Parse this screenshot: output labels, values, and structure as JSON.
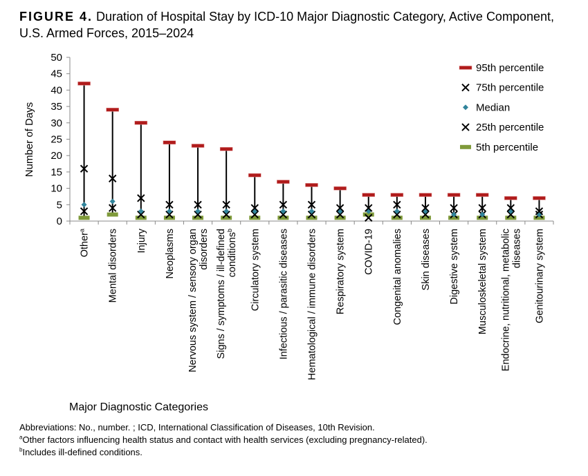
{
  "title": {
    "figure": "FIGURE 4.",
    "text": "Duration of Hospital Stay by ICD-10 Major Diagnostic Category, Active Component, U.S. Armed Forces, 2015–2024"
  },
  "chart_data": {
    "type": "scatter",
    "ylabel": "Number of Days",
    "xlabel": "Major Diagnostic Categories",
    "ylim": [
      0,
      50
    ],
    "yticks": [
      "0",
      "5",
      "10",
      "15",
      "20",
      "25",
      "30",
      "35",
      "40",
      "45",
      "50"
    ],
    "legend_position": "top-right",
    "categories": [
      [
        "Other",
        "a"
      ],
      [
        "Mental disorders"
      ],
      [
        "Injury"
      ],
      [
        "Neoplasms"
      ],
      [
        "Nervous system / sensory organ",
        "disorders"
      ],
      [
        "Signs / symptoms / ill-defined",
        "conditions",
        "b"
      ],
      [
        "Circulatory system"
      ],
      [
        "Infectious / parasitic diseases"
      ],
      [
        "Hematological / immune disorders"
      ],
      [
        "Respiratory system"
      ],
      [
        "COVID-19"
      ],
      [
        "Congenital anomalies"
      ],
      [
        "Skin diseases"
      ],
      [
        "Digestive system"
      ],
      [
        "Musculoskeletal system"
      ],
      [
        "Endocrine, nutritional, metabolic",
        "diseases"
      ],
      [
        "Genitourinary system"
      ]
    ],
    "series": [
      {
        "name": "95th percentile",
        "color": "#b01c1c",
        "values": [
          42,
          34,
          30,
          24,
          23,
          22,
          14,
          12,
          11,
          10,
          8,
          8,
          8,
          8,
          8,
          7,
          7
        ]
      },
      {
        "name": "75th percentile",
        "color": "#000000",
        "values": [
          16,
          13,
          7,
          5,
          5,
          5,
          4,
          5,
          5,
          4,
          4,
          5,
          4,
          4,
          4,
          4,
          3
        ]
      },
      {
        "name": "Median",
        "color": "#31849b",
        "values": [
          5,
          6,
          3,
          3,
          3,
          3,
          3,
          3,
          3,
          3,
          3,
          3,
          3,
          2,
          2,
          3,
          2
        ]
      },
      {
        "name": "25th percentile",
        "color": "#000000",
        "values": [
          3,
          4,
          2,
          2,
          2,
          2,
          2,
          2,
          2,
          2,
          1,
          2,
          2,
          2,
          2,
          2,
          2
        ]
      },
      {
        "name": "5th percentile",
        "color": "#7f9a3a",
        "values": [
          1,
          2,
          1,
          1,
          1,
          1,
          1,
          1,
          1,
          1,
          2,
          1,
          1,
          1,
          1,
          1,
          1
        ]
      }
    ]
  },
  "notes": {
    "abbrev": "Abbreviations: No., number. ; ICD, International Classification of Diseases, 10th Revision.",
    "a_mark": "a",
    "a_text": "Other factors influencing health status and contact with health services (excluding pregnancy-related).",
    "b_mark": "b",
    "b_text": "Includes ill-defined conditions."
  }
}
